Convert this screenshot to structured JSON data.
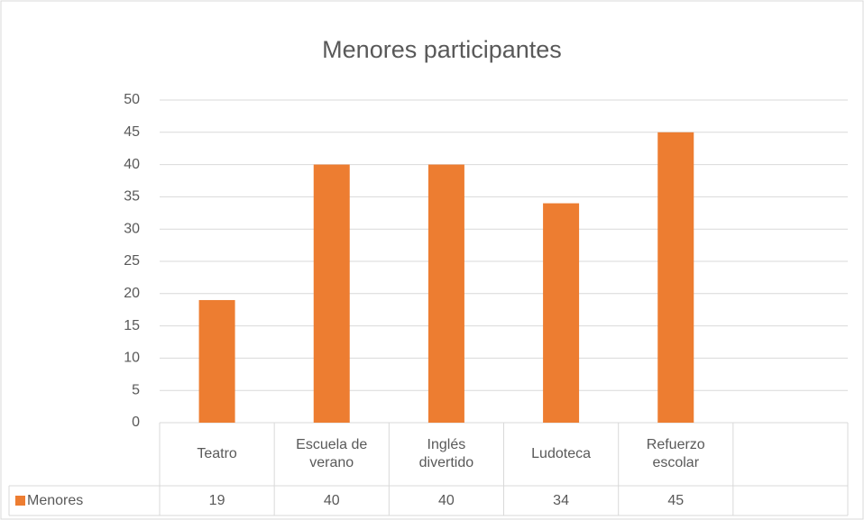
{
  "chart_data": {
    "type": "bar",
    "title": "Menores participantes",
    "categories": [
      "Teatro",
      "Escuela de verano",
      "Inglés divertido",
      "Ludoteca",
      "Refuerzo escolar",
      null
    ],
    "series": [
      {
        "name": "Menores",
        "color": "#ed7d31",
        "values": [
          19,
          40,
          40,
          34,
          45,
          null
        ]
      }
    ],
    "ylim": [
      0,
      50
    ],
    "yticks": [
      0,
      5,
      10,
      15,
      20,
      25,
      30,
      35,
      40,
      45,
      50
    ],
    "grid": true,
    "data_table": true
  }
}
